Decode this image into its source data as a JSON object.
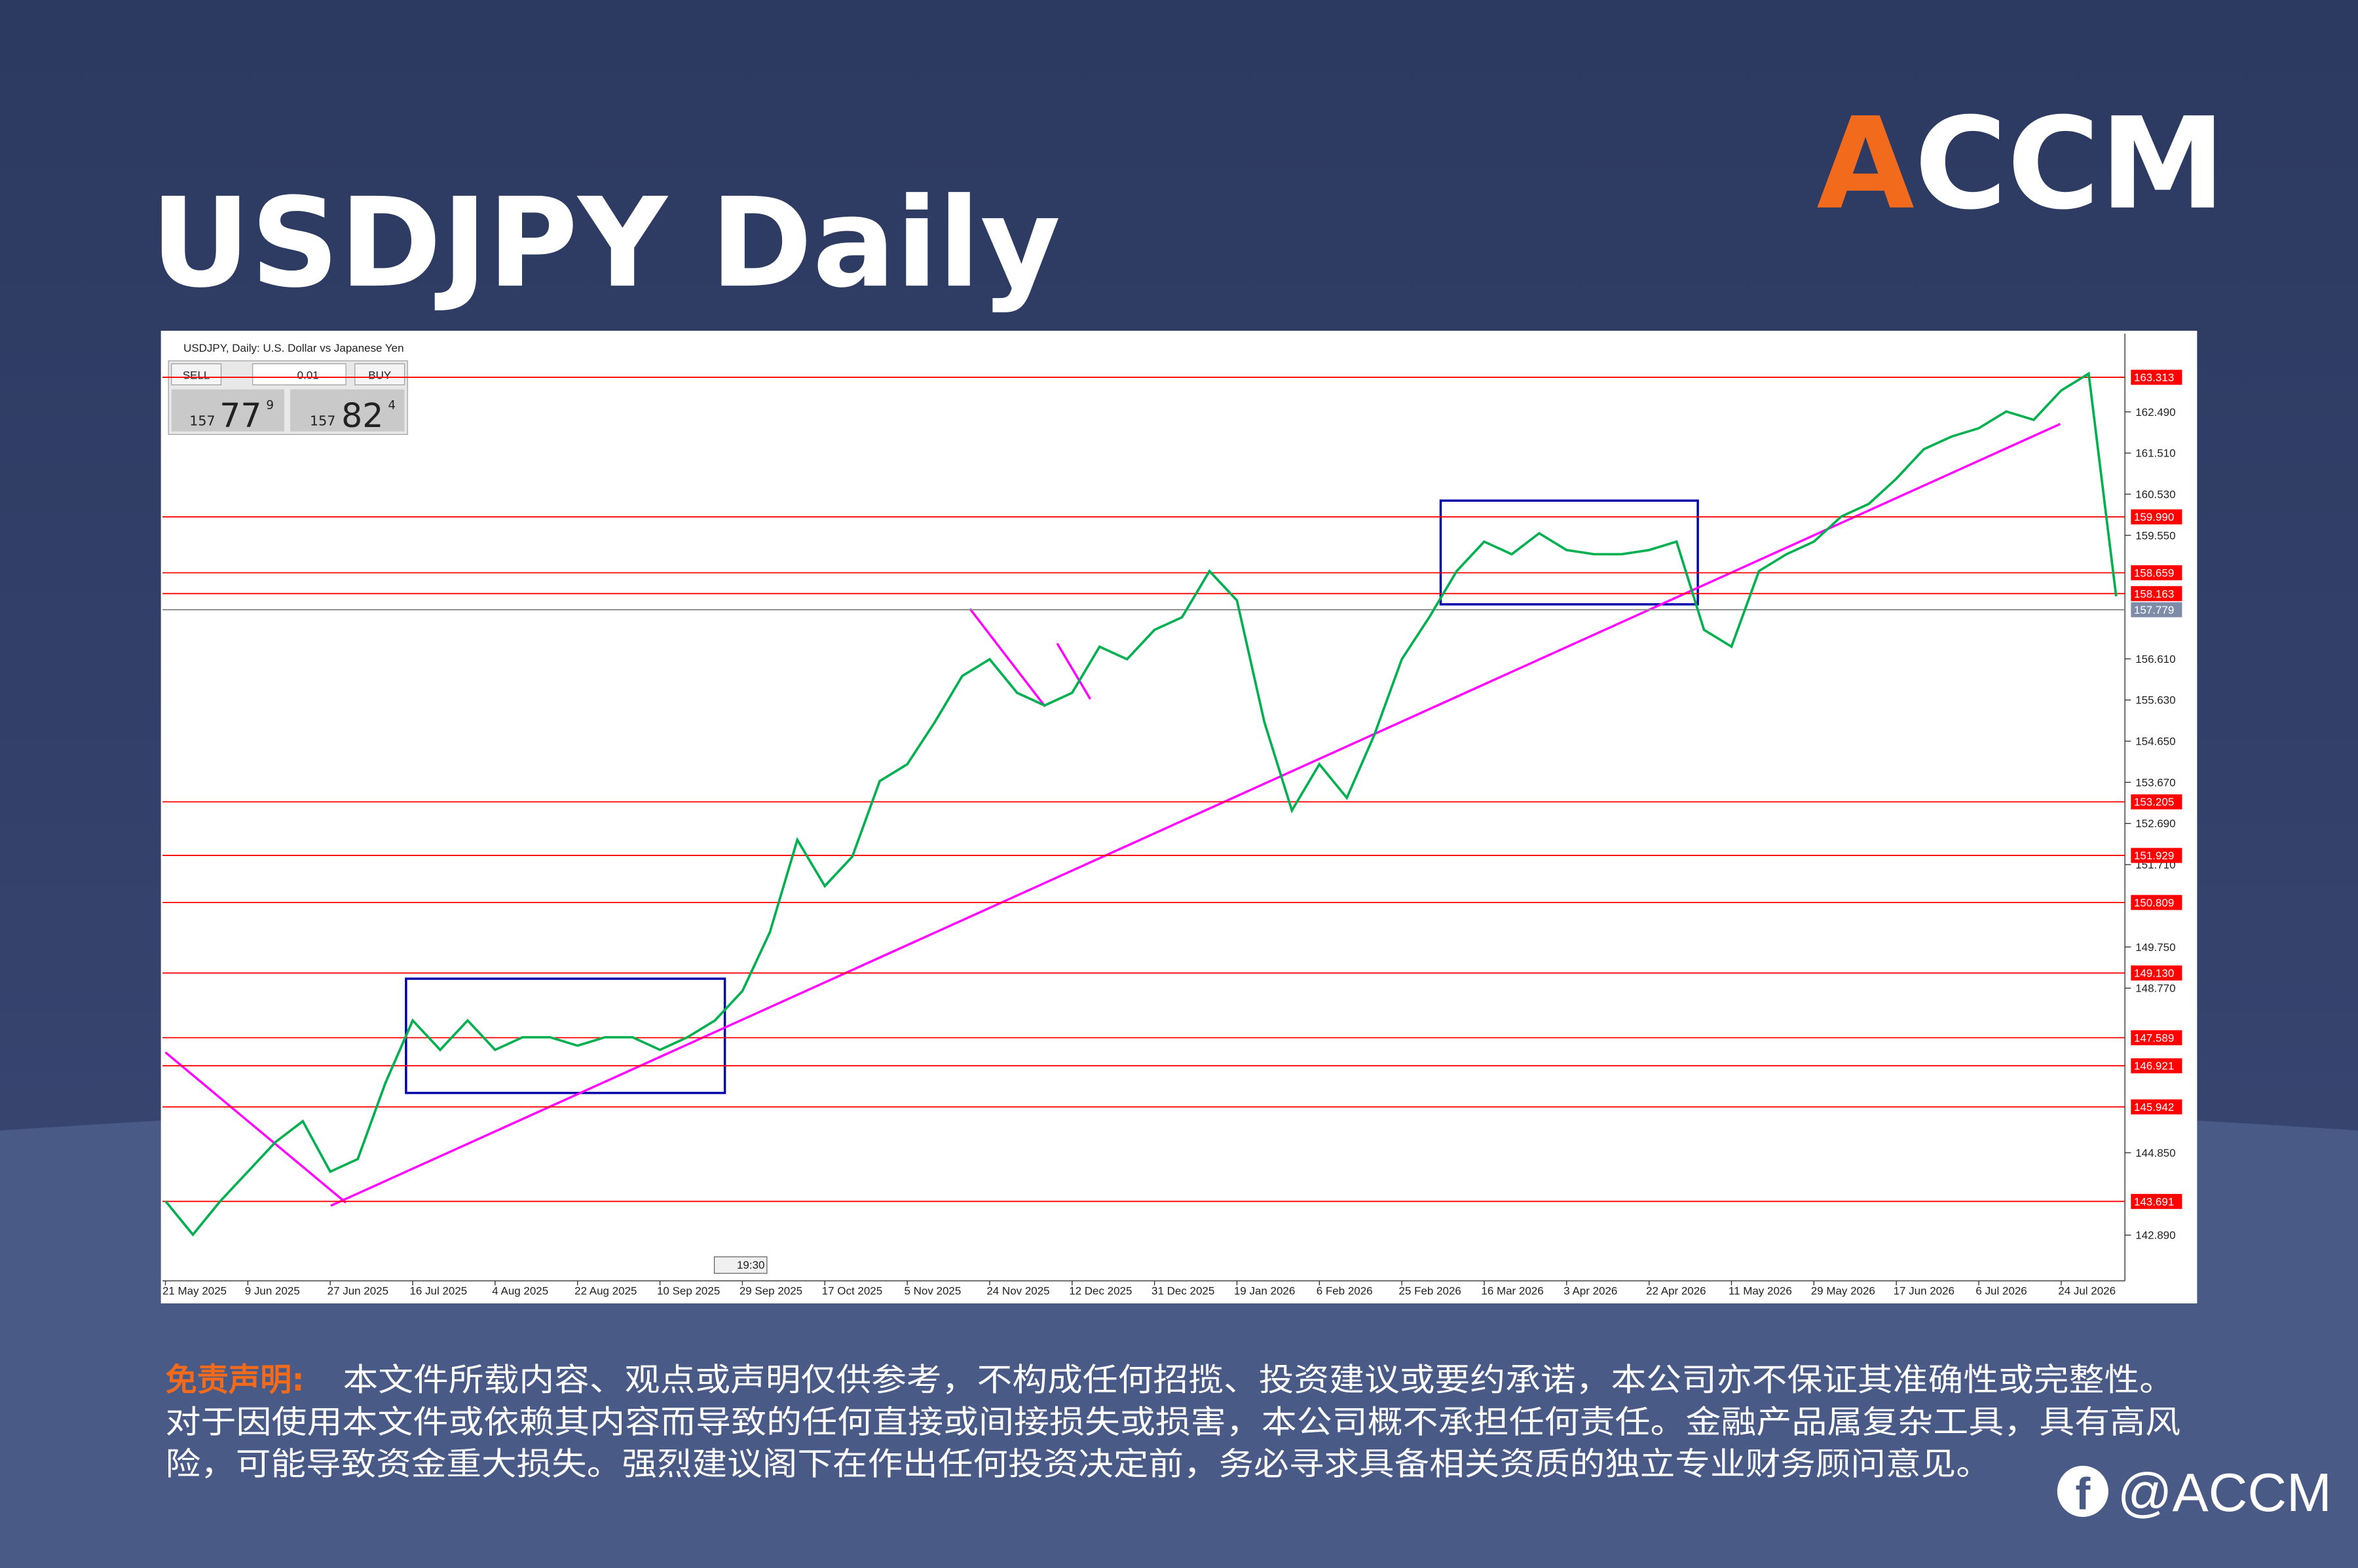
{
  "header": {
    "title": "USDJPY Daily",
    "logo": {
      "accent": "A",
      "rest": "CCM"
    }
  },
  "trade_panel": {
    "sell": "SELL",
    "buy": "BUY",
    "lot": "0.01",
    "bid": {
      "big": "157",
      "pips": "77",
      "frac": "9"
    },
    "ask": {
      "big": "157",
      "pips": "82",
      "frac": "4"
    },
    "time": "19:30"
  },
  "chart_data": {
    "type": "line",
    "title": "USDJPY, Daily:  U.S. Dollar vs Japanese Yen",
    "color": "#00b050",
    "categories": [
      "21 May 2025",
      null,
      null,
      "9 Jun 2025",
      null,
      null,
      "27 Jun 2025",
      null,
      null,
      "16 Jul 2025",
      null,
      null,
      "4 Aug 2025",
      null,
      null,
      "22 Aug 2025",
      null,
      null,
      "10 Sep 2025",
      null,
      null,
      "29 Sep 2025",
      null,
      null,
      "17 Oct 2025",
      null,
      null,
      "5 Nov 2025",
      null,
      null,
      "24 Nov 2025",
      null,
      null,
      "12 Dec 2025",
      null,
      null,
      "31 Dec 2025",
      null,
      null,
      "19 Jan 2026",
      null,
      null,
      "6 Feb 2026",
      null,
      null,
      "25 Feb 2026",
      null,
      null,
      "16 Mar 2026",
      null,
      null,
      "3 Apr 2026",
      null,
      null,
      "22 Apr 2026",
      null,
      null,
      "11 May 2026",
      null,
      null,
      "29 May 2026",
      null,
      null,
      "17 Jun 2026",
      null,
      null,
      "6 Jul 2026",
      null,
      null,
      "24 Jul 2026",
      null,
      null
    ],
    "values": [
      143.7,
      142.9,
      143.7,
      144.4,
      145.1,
      145.6,
      144.4,
      144.7,
      146.5,
      148.0,
      147.3,
      148.0,
      147.3,
      147.6,
      147.6,
      147.4,
      147.6,
      147.6,
      147.3,
      147.6,
      148.0,
      148.7,
      150.1,
      152.3,
      151.2,
      151.9,
      153.7,
      154.1,
      155.1,
      156.2,
      156.6,
      155.8,
      155.5,
      155.8,
      156.9,
      156.6,
      157.3,
      157.6,
      158.7,
      158.0,
      155.1,
      153.0,
      154.1,
      153.3,
      154.8,
      156.6,
      157.6,
      158.7,
      159.4,
      159.1,
      159.6,
      159.2,
      159.1,
      159.1,
      159.2,
      159.4,
      157.3,
      156.9,
      158.7,
      159.1,
      159.4,
      160.0,
      160.3,
      160.9,
      161.6,
      161.9,
      162.1,
      162.5,
      162.3,
      163.0,
      163.4,
      158.1
    ],
    "ylim": [
      141.8,
      164.35
    ],
    "yticks": [
      {
        "value": 162.49,
        "label": "162.490"
      },
      {
        "value": 161.51,
        "label": "161.510"
      },
      {
        "value": 160.53,
        "label": "160.530"
      },
      {
        "value": 159.55,
        "label": "159.550"
      },
      {
        "value": 156.61,
        "label": "156.610"
      },
      {
        "value": 155.63,
        "label": "155.630"
      },
      {
        "value": 154.65,
        "label": "154.650"
      },
      {
        "value": 153.67,
        "label": "153.670"
      },
      {
        "value": 152.69,
        "label": "152.690"
      },
      {
        "value": 151.71,
        "label": "151.710"
      },
      {
        "value": 149.75,
        "label": "149.750"
      },
      {
        "value": 148.77,
        "label": "148.770"
      },
      {
        "value": 144.85,
        "label": "144.850"
      },
      {
        "value": 142.89,
        "label": "142.890"
      }
    ],
    "grid": false,
    "levels": [
      {
        "value": 163.313,
        "label": "163.313"
      },
      {
        "value": 159.99,
        "label": "159.990"
      },
      {
        "value": 158.659,
        "label": "158.659"
      },
      {
        "value": 158.163,
        "label": "158.163"
      },
      {
        "value": 153.205,
        "label": "153.205"
      },
      {
        "value": 151.929,
        "label": "151.929"
      },
      {
        "value": 150.809,
        "label": "150.809"
      },
      {
        "value": 149.13,
        "label": "149.130"
      },
      {
        "value": 147.589,
        "label": "147.589"
      },
      {
        "value": 146.921,
        "label": "146.921"
      },
      {
        "value": 145.942,
        "label": "145.942"
      },
      {
        "value": 143.691,
        "label": "143.691"
      }
    ],
    "level_color": "#ff0000",
    "current": {
      "value": 157.779,
      "label": "157.779"
    }
  },
  "disclaimer": {
    "label": "免责声明:",
    "lines": [
      "本文件所载内容、观点或声明仅供参考，不构成任何招揽、投资建议或要约承诺，本公司亦不保证其准确性或完整性。",
      "对于因使用本文件或依赖其内容而导致的任何直接或间接损失或损害，本公司概不承担任何责任。金融产品属复杂工具，具有高风",
      "险，可能导致资金重大损失。强烈建议阁下在作出任何投资决定前，务必寻求具备相关资质的独立专业财务顾问意见。"
    ]
  },
  "footer": {
    "handle": "@ACCM"
  }
}
